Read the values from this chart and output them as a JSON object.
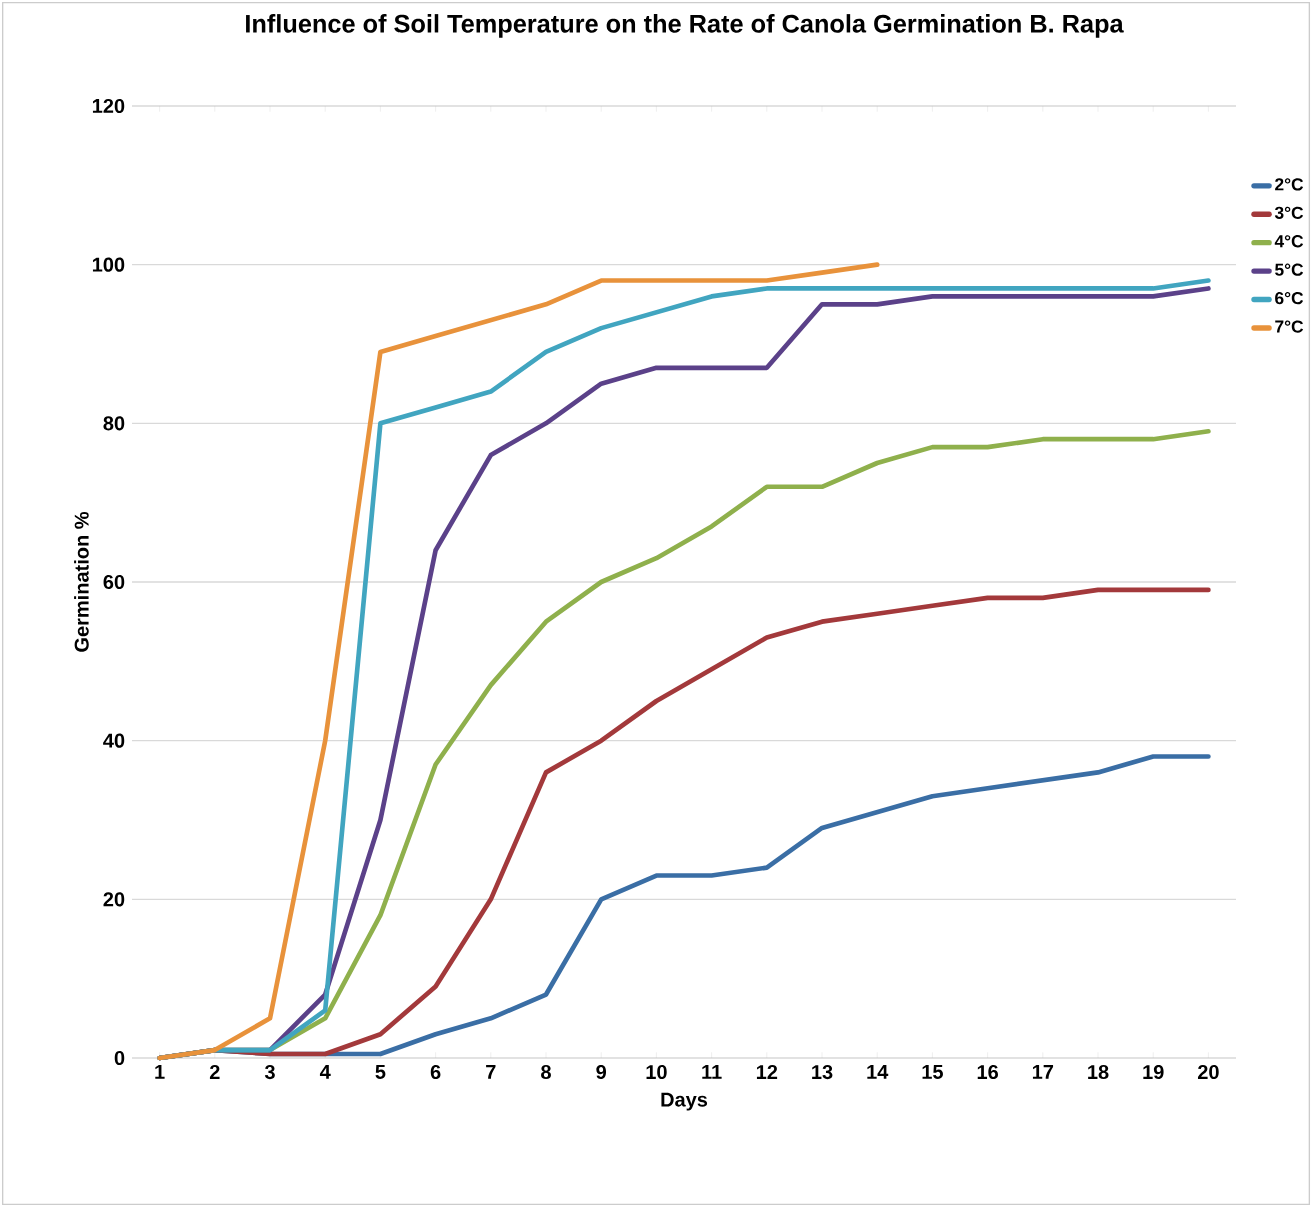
{
  "chart_data": {
    "type": "line",
    "title": "Influence of Soil Temperature on the Rate of Canola Germination B. Rapa",
    "xlabel": "Days",
    "ylabel": "Germination %",
    "categories": [
      "1",
      "2",
      "3",
      "4",
      "5",
      "6",
      "7",
      "8",
      "9",
      "10",
      "11",
      "12",
      "13",
      "14",
      "15",
      "16",
      "17",
      "18",
      "19",
      "20"
    ],
    "ylim": [
      0,
      120
    ],
    "yticks": [
      0,
      20,
      40,
      60,
      80,
      100,
      120
    ],
    "grid": "y",
    "legend": "right",
    "series": [
      {
        "name": "2°C",
        "color": "#3a6ea5",
        "values": [
          0,
          1,
          0.5,
          0.5,
          0.5,
          3,
          5,
          8,
          20,
          23,
          23,
          24,
          29,
          31,
          33,
          34,
          35,
          36,
          38,
          38
        ]
      },
      {
        "name": "3°C",
        "color": "#a3393b",
        "values": [
          0,
          1,
          0.5,
          0.5,
          3,
          9,
          20,
          36,
          40,
          45,
          49,
          53,
          55,
          56,
          57,
          58,
          58,
          59,
          59,
          59
        ]
      },
      {
        "name": "4°C",
        "color": "#8fb04c",
        "values": [
          0,
          1,
          1,
          5,
          18,
          37,
          47,
          55,
          60,
          63,
          67,
          72,
          72,
          75,
          77,
          77,
          78,
          78,
          78,
          79
        ]
      },
      {
        "name": "5°C",
        "color": "#5b4189",
        "values": [
          0,
          1,
          1,
          8,
          30,
          64,
          76,
          80,
          85,
          87,
          87,
          87,
          95,
          95,
          96,
          96,
          96,
          96,
          96,
          97
        ]
      },
      {
        "name": "6°C",
        "color": "#41a5c0",
        "values": [
          0,
          1,
          1,
          6,
          80,
          82,
          84,
          89,
          92,
          94,
          96,
          97,
          97,
          97,
          97,
          97,
          97,
          97,
          97,
          98
        ]
      },
      {
        "name": "7°C",
        "color": "#e8923b",
        "values": [
          0,
          1,
          5,
          40,
          89,
          91,
          93,
          95,
          98,
          98,
          98,
          98,
          99,
          100,
          null,
          null,
          null,
          null,
          null,
          null
        ]
      }
    ]
  }
}
